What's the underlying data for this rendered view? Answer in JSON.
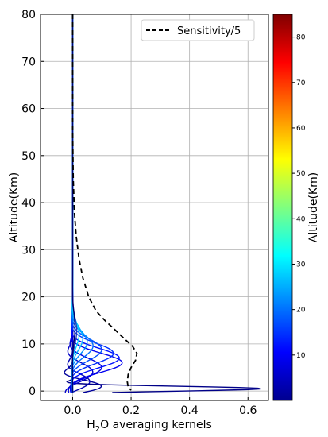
{
  "chart_data": {
    "type": "line",
    "xlabel_main": "H",
    "xlabel_sub": "2",
    "xlabel_rest": "O averaging kernels",
    "ylabel": "Altitude(Km)",
    "xlim": [
      -0.11,
      0.67
    ],
    "ylim": [
      -2,
      80
    ],
    "x_ticks": [
      0.0,
      0.2,
      0.4,
      0.6
    ],
    "x_tick_labels": [
      "0.0",
      "0.2",
      "0.4",
      "0.6"
    ],
    "y_ticks": [
      0,
      10,
      20,
      30,
      40,
      50,
      60,
      70,
      80
    ],
    "y_tick_labels": [
      "0",
      "10",
      "20",
      "30",
      "40",
      "50",
      "60",
      "70",
      "80"
    ],
    "grid": true,
    "legend": {
      "position": "top-right",
      "entries": [
        "Sensitivity/5"
      ]
    },
    "sensitivity_series": {
      "name": "Sensitivity/5",
      "style": "dashed",
      "color": "#000000",
      "points": [
        [
          0.0,
          80
        ],
        [
          0.0,
          55
        ],
        [
          0.002,
          45
        ],
        [
          0.006,
          38
        ],
        [
          0.012,
          33
        ],
        [
          0.022,
          28
        ],
        [
          0.035,
          24
        ],
        [
          0.055,
          20
        ],
        [
          0.08,
          17
        ],
        [
          0.11,
          15
        ],
        [
          0.145,
          13
        ],
        [
          0.175,
          11.2
        ],
        [
          0.205,
          9.5
        ],
        [
          0.22,
          8
        ],
        [
          0.215,
          6.5
        ],
        [
          0.2,
          5
        ],
        [
          0.19,
          3.5
        ],
        [
          0.187,
          2
        ],
        [
          0.19,
          0.8
        ],
        [
          0.2,
          0.2
        ]
      ]
    },
    "colorbar": {
      "label": "Altitude(Km)",
      "range": [
        0,
        85
      ],
      "ticks": [
        10,
        20,
        30,
        40,
        50,
        60,
        70,
        80
      ],
      "tick_labels": [
        "10",
        "20",
        "30",
        "40",
        "50",
        "60",
        "70",
        "80"
      ],
      "colormap": "jet"
    },
    "kernel_series": [
      {
        "level": 0.5,
        "color": "#000088",
        "peak_alt": 0.5,
        "peak_val": 0.65,
        "width": 0.5,
        "neg": -0.06
      },
      {
        "level": 1.5,
        "color": "#00009a",
        "peak_alt": 1.0,
        "peak_val": 0.1,
        "width": 1.2,
        "neg": -0.05
      },
      {
        "level": 2.5,
        "color": "#0000b0",
        "peak_alt": 2.0,
        "peak_val": 0.06,
        "width": 1.5,
        "neg": -0.03
      },
      {
        "level": 3.5,
        "color": "#0000c8",
        "peak_alt": 4.0,
        "peak_val": 0.07,
        "width": 1.8,
        "neg": -0.03
      },
      {
        "level": 4.5,
        "color": "#0000dd",
        "peak_alt": 5.0,
        "peak_val": 0.1,
        "width": 1.9,
        "neg": -0.02
      },
      {
        "level": 5.5,
        "color": "#0000f0",
        "peak_alt": 6.0,
        "peak_val": 0.17,
        "width": 2.0,
        "neg": -0.015
      },
      {
        "level": 6.5,
        "color": "#0010ff",
        "peak_alt": 7.0,
        "peak_val": 0.16,
        "width": 2.0,
        "neg": -0.012
      },
      {
        "level": 7.5,
        "color": "#0030ff",
        "peak_alt": 8.0,
        "peak_val": 0.14,
        "width": 2.1,
        "neg": -0.01
      },
      {
        "level": 8.5,
        "color": "#0050ff",
        "peak_alt": 8.8,
        "peak_val": 0.1,
        "width": 2.2,
        "neg": -0.008
      },
      {
        "level": 10,
        "color": "#0070ff",
        "peak_alt": 9.6,
        "peak_val": 0.07,
        "width": 2.3,
        "neg": -0.006
      },
      {
        "level": 11.5,
        "color": "#0090ff",
        "peak_alt": 10.4,
        "peak_val": 0.05,
        "width": 2.4,
        "neg": -0.005
      },
      {
        "level": 13,
        "color": "#00b0ff",
        "peak_alt": 11.2,
        "peak_val": 0.035,
        "width": 2.5,
        "neg": -0.004
      },
      {
        "level": 15,
        "color": "#00d0ff",
        "peak_alt": 12.0,
        "peak_val": 0.022,
        "width": 2.6,
        "neg": -0.003
      },
      {
        "level": 18,
        "color": "#2040c0",
        "peak_alt": 12.8,
        "peak_val": 0.014,
        "width": 2.8,
        "neg": -0.002
      },
      {
        "level": 25,
        "color": "#000070",
        "peak_alt": 13.5,
        "peak_val": 0.008,
        "width": 3.0,
        "neg": -0.001
      }
    ]
  }
}
